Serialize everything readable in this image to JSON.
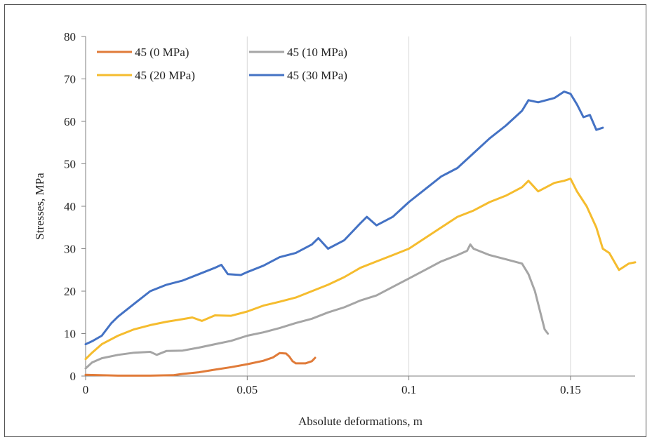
{
  "chart_data": {
    "type": "line",
    "title": "",
    "xlabel": "Absolute deformations, m",
    "ylabel": "Stresses, MPa",
    "xlim": [
      0,
      0.17
    ],
    "ylim": [
      0,
      80
    ],
    "x_ticks": [
      0,
      0.05,
      0.1,
      0.15
    ],
    "x_tick_labels": [
      "0",
      "0.05",
      "0.1",
      "0.15"
    ],
    "y_ticks": [
      0,
      10,
      20,
      30,
      40,
      50,
      60,
      70,
      80
    ],
    "y_tick_labels": [
      "0",
      "10",
      "20",
      "30",
      "40",
      "50",
      "60",
      "70",
      "80"
    ],
    "grid": "vertical",
    "legend_position": "top-left",
    "series": [
      {
        "name": "45 (0 MPa)",
        "color": "#E07B39",
        "points": [
          [
            0,
            0.3
          ],
          [
            0.01,
            0.1
          ],
          [
            0.02,
            0.1
          ],
          [
            0.027,
            0.2
          ],
          [
            0.03,
            0.5
          ],
          [
            0.035,
            0.9
          ],
          [
            0.04,
            1.5
          ],
          [
            0.045,
            2.1
          ],
          [
            0.05,
            2.8
          ],
          [
            0.055,
            3.6
          ],
          [
            0.058,
            4.4
          ],
          [
            0.06,
            5.4
          ],
          [
            0.062,
            5.3
          ],
          [
            0.063,
            4.6
          ],
          [
            0.064,
            3.5
          ],
          [
            0.065,
            3.0
          ],
          [
            0.068,
            3.0
          ],
          [
            0.07,
            3.5
          ],
          [
            0.071,
            4.3
          ]
        ]
      },
      {
        "name": "45 (10 MPa)",
        "color": "#A5A5A5",
        "points": [
          [
            0,
            1.8
          ],
          [
            0.002,
            3.2
          ],
          [
            0.005,
            4.2
          ],
          [
            0.01,
            5.0
          ],
          [
            0.015,
            5.5
          ],
          [
            0.02,
            5.7
          ],
          [
            0.022,
            5.0
          ],
          [
            0.025,
            5.9
          ],
          [
            0.03,
            6.0
          ],
          [
            0.035,
            6.7
          ],
          [
            0.04,
            7.5
          ],
          [
            0.045,
            8.3
          ],
          [
            0.05,
            9.5
          ],
          [
            0.055,
            10.3
          ],
          [
            0.06,
            11.3
          ],
          [
            0.065,
            12.5
          ],
          [
            0.07,
            13.5
          ],
          [
            0.075,
            15.0
          ],
          [
            0.08,
            16.2
          ],
          [
            0.085,
            17.8
          ],
          [
            0.09,
            19.0
          ],
          [
            0.095,
            21.0
          ],
          [
            0.1,
            23.0
          ],
          [
            0.105,
            25.0
          ],
          [
            0.11,
            27.0
          ],
          [
            0.115,
            28.5
          ],
          [
            0.118,
            29.5
          ],
          [
            0.119,
            31.0
          ],
          [
            0.12,
            30.0
          ],
          [
            0.125,
            28.5
          ],
          [
            0.13,
            27.5
          ],
          [
            0.135,
            26.5
          ],
          [
            0.137,
            24.0
          ],
          [
            0.139,
            20.0
          ],
          [
            0.141,
            14.0
          ],
          [
            0.142,
            11.0
          ],
          [
            0.143,
            10.0
          ]
        ]
      },
      {
        "name": "45 (20 MPa)",
        "color": "#F5BC2E",
        "points": [
          [
            0,
            4.0
          ],
          [
            0.002,
            5.5
          ],
          [
            0.005,
            7.5
          ],
          [
            0.01,
            9.5
          ],
          [
            0.015,
            11.0
          ],
          [
            0.02,
            12.0
          ],
          [
            0.025,
            12.8
          ],
          [
            0.03,
            13.4
          ],
          [
            0.033,
            13.8
          ],
          [
            0.036,
            13.0
          ],
          [
            0.04,
            14.3
          ],
          [
            0.045,
            14.2
          ],
          [
            0.05,
            15.2
          ],
          [
            0.055,
            16.6
          ],
          [
            0.06,
            17.5
          ],
          [
            0.065,
            18.5
          ],
          [
            0.07,
            20.0
          ],
          [
            0.075,
            21.5
          ],
          [
            0.08,
            23.3
          ],
          [
            0.085,
            25.5
          ],
          [
            0.09,
            27.0
          ],
          [
            0.095,
            28.5
          ],
          [
            0.1,
            30.0
          ],
          [
            0.105,
            32.5
          ],
          [
            0.11,
            35.0
          ],
          [
            0.115,
            37.5
          ],
          [
            0.12,
            39.0
          ],
          [
            0.125,
            41.0
          ],
          [
            0.13,
            42.5
          ],
          [
            0.135,
            44.5
          ],
          [
            0.137,
            46.0
          ],
          [
            0.14,
            43.5
          ],
          [
            0.145,
            45.5
          ],
          [
            0.148,
            46.0
          ],
          [
            0.15,
            46.5
          ],
          [
            0.152,
            43.5
          ],
          [
            0.155,
            40.0
          ],
          [
            0.158,
            35.0
          ],
          [
            0.16,
            30.0
          ],
          [
            0.162,
            29.0
          ],
          [
            0.165,
            25.0
          ],
          [
            0.168,
            26.5
          ],
          [
            0.17,
            26.8
          ]
        ]
      },
      {
        "name": "45 (30 MPa)",
        "color": "#4472C4",
        "points": [
          [
            0,
            7.5
          ],
          [
            0.002,
            8.2
          ],
          [
            0.005,
            9.5
          ],
          [
            0.008,
            12.5
          ],
          [
            0.01,
            14.0
          ],
          [
            0.015,
            17.0
          ],
          [
            0.02,
            20.0
          ],
          [
            0.025,
            21.5
          ],
          [
            0.03,
            22.5
          ],
          [
            0.035,
            24.0
          ],
          [
            0.04,
            25.5
          ],
          [
            0.042,
            26.2
          ],
          [
            0.044,
            24.0
          ],
          [
            0.048,
            23.8
          ],
          [
            0.05,
            24.5
          ],
          [
            0.055,
            26.0
          ],
          [
            0.06,
            28.0
          ],
          [
            0.065,
            29.0
          ],
          [
            0.07,
            31.0
          ],
          [
            0.072,
            32.5
          ],
          [
            0.075,
            30.0
          ],
          [
            0.08,
            32.0
          ],
          [
            0.085,
            36.0
          ],
          [
            0.087,
            37.5
          ],
          [
            0.09,
            35.5
          ],
          [
            0.095,
            37.5
          ],
          [
            0.1,
            41.0
          ],
          [
            0.105,
            44.0
          ],
          [
            0.11,
            47.0
          ],
          [
            0.115,
            49.0
          ],
          [
            0.12,
            52.5
          ],
          [
            0.125,
            56.0
          ],
          [
            0.13,
            59.0
          ],
          [
            0.135,
            62.5
          ],
          [
            0.137,
            65.0
          ],
          [
            0.14,
            64.5
          ],
          [
            0.145,
            65.5
          ],
          [
            0.148,
            67.0
          ],
          [
            0.15,
            66.5
          ],
          [
            0.152,
            64.0
          ],
          [
            0.154,
            61.0
          ],
          [
            0.156,
            61.5
          ],
          [
            0.158,
            58.0
          ],
          [
            0.16,
            58.5
          ]
        ]
      }
    ]
  }
}
